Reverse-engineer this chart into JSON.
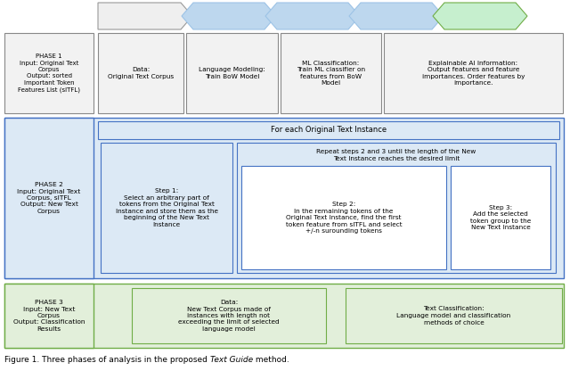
{
  "bg": "#ffffff",
  "gray_fill": "#f2f2f2",
  "gray_edge": "#888888",
  "blue_fill": "#dce9f5",
  "blue_edge": "#4472c4",
  "white_fill": "#ffffff",
  "green_fill": "#e2efda",
  "green_edge": "#70ad47",
  "chev_gray_fill": "#efefef",
  "chev_gray_edge": "#999999",
  "chev_blue_fill": "#bdd7ee",
  "chev_blue_edge": "#9dc3e6",
  "chev_green_fill": "#c6efce",
  "chev_green_edge": "#70ad47",
  "phase1": "PHASE 1\nInput: Original Text\nCorpus\nOutput: sorted\nImportant Token\nFeatures List (sITFL)",
  "phase2": "PHASE 2\nInput: Original Text\nCorpus, sITFL\nOutput: New Text\nCorpus",
  "phase3": "PHASE 3\nInput: New Text\nCorpus\nOutput: Classification\nResults",
  "p1b1": "Data:\nOriginal Text Corpus",
  "p1b2": "Language Modeling:\nTrain BoW Model",
  "p1b3": "ML Classification:\nTrain ML classifier on\nfeatures from BoW\nModel",
  "p1b4": "Explainable AI Information:\nOutput features and feature\nimportances. Order features by\nimportance.",
  "foreach": "For each Original Text Instance",
  "repeat": "Repeat steps 2 and 3 until the length of the New\nText Instance reaches the desired limit",
  "step1": "Step 1:\nSelect an arbitrary part of\ntokens from the Original Text\nInstance and store them as the\nbeginning of the New Text\nInstance",
  "step2": "Step 2:\nIn the remaining tokens of the\nOriginal Text Instance, find the first\ntoken feature from sITFL and select\n+/-n surounding tokens",
  "step3": "Step 3:\nAdd the selected\ntoken group to the\nNew Text Instance",
  "p3b1": "Data:\nNew Text Corpus made of\ninstances with length not\nexceeding the limit of selected\nlanguage model",
  "p3b2": "Text Classification:\nLanguage model and classification\nmethods of choice",
  "cap1": "Figure 1. Three phases of analysis in the proposed ",
  "cap2": "Text Guide",
  "cap3": " method."
}
